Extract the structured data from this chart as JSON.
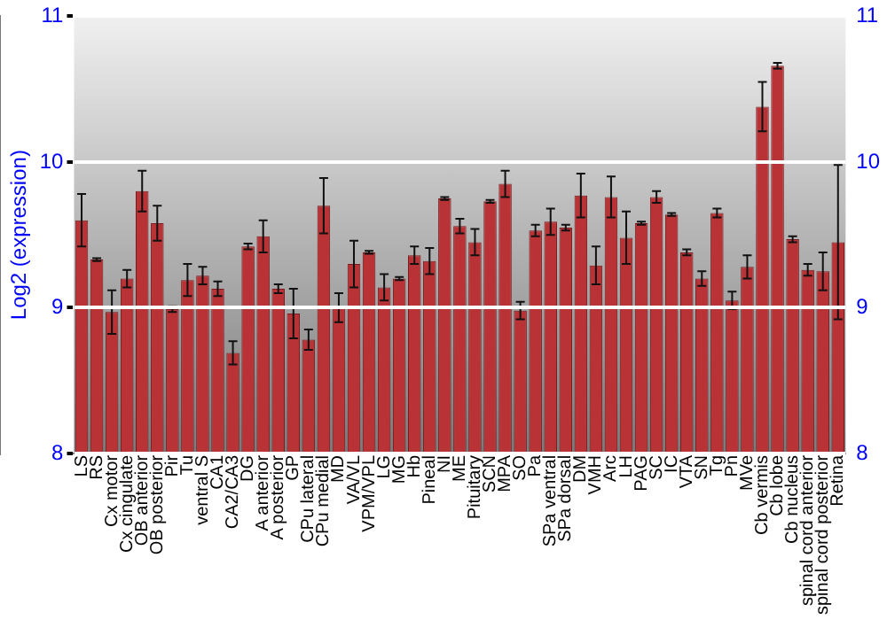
{
  "chart_data": {
    "type": "bar",
    "ylabel": "Log2 (expression)",
    "categories": [
      "LS",
      "RS",
      "Cx motor",
      "Cx cingulate",
      "OB anterior",
      "OB posterior",
      "Pir",
      "Tu",
      "ventral S",
      "CA1",
      "CA2/CA3",
      "DG",
      "A anterior",
      "A posterior",
      "GP",
      "CPu lateral",
      "CPu medial",
      "MD",
      "VA/VL",
      "VPM/VPL",
      "LG",
      "MG",
      "Hb",
      "Pineal",
      "NI",
      "ME",
      "Pituitary",
      "SCN",
      "MPA",
      "SO",
      "Pa",
      "SPa ventral",
      "SPa dorsal",
      "DM",
      "VMH",
      "Arc",
      "LH",
      "PAG",
      "SC",
      "IC",
      "VTA",
      "SN",
      "Tg",
      "Pn",
      "MVe",
      "Cb vermis",
      "Cb lobe",
      "Cb nucleus",
      "spinal cord anterior",
      "spinal cord posterior",
      "Retina"
    ],
    "values": [
      9.6,
      9.33,
      8.97,
      9.2,
      9.8,
      9.58,
      8.99,
      9.19,
      9.22,
      9.13,
      8.69,
      9.42,
      9.49,
      9.13,
      8.96,
      8.78,
      9.7,
      9.0,
      9.3,
      9.38,
      9.14,
      9.2,
      9.36,
      9.32,
      9.75,
      9.56,
      9.45,
      9.73,
      9.85,
      8.98,
      9.53,
      9.59,
      9.55,
      9.77,
      9.29,
      9.76,
      9.48,
      9.58,
      9.76,
      9.64,
      9.38,
      9.2,
      9.65,
      9.05,
      9.28,
      10.38,
      10.66,
      9.47,
      9.26,
      9.25,
      9.45
    ],
    "errors": [
      0.18,
      0.01,
      0.15,
      0.06,
      0.14,
      0.12,
      0.02,
      0.11,
      0.06,
      0.05,
      0.08,
      0.02,
      0.11,
      0.03,
      0.17,
      0.07,
      0.19,
      0.1,
      0.16,
      0.01,
      0.09,
      0.01,
      0.06,
      0.09,
      0.01,
      0.05,
      0.09,
      0.01,
      0.09,
      0.06,
      0.04,
      0.09,
      0.02,
      0.15,
      0.13,
      0.14,
      0.18,
      0.01,
      0.04,
      0.01,
      0.02,
      0.05,
      0.03,
      0.06,
      0.08,
      0.17,
      0.02,
      0.02,
      0.04,
      0.13,
      0.53
    ],
    "color": "#b83236",
    "ylim": [
      8,
      11
    ],
    "yticks": [
      8,
      9,
      10,
      11
    ],
    "y2lim": [
      8,
      11
    ],
    "y2ticks": [
      8,
      9,
      10,
      11
    ],
    "grid": "y",
    "legend": false
  }
}
